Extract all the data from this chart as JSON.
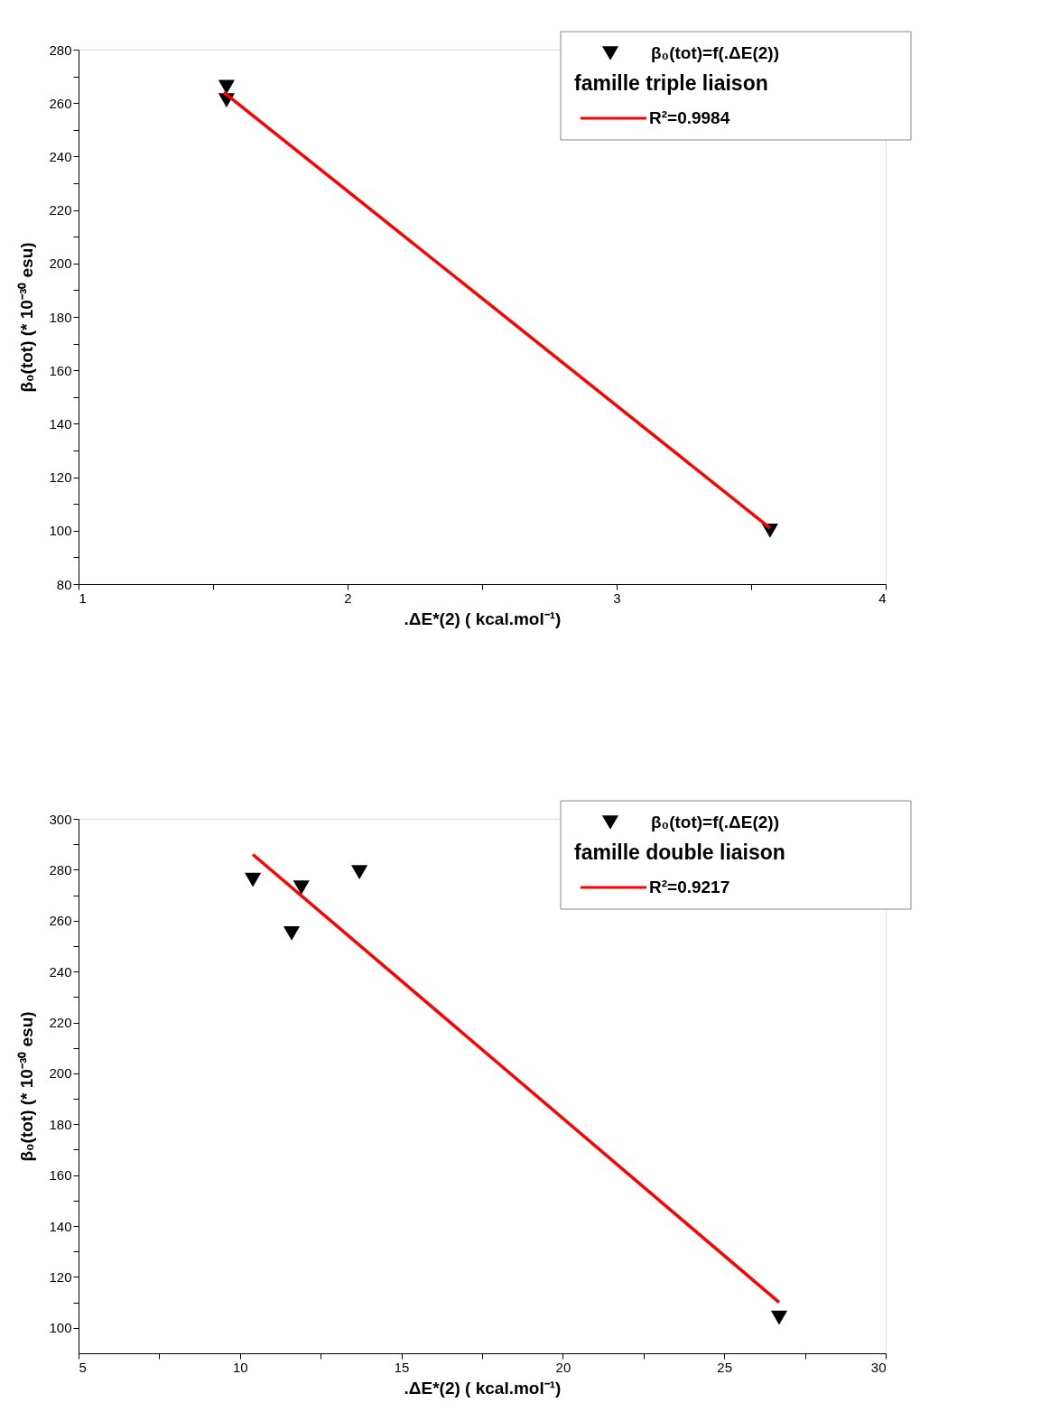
{
  "chart_data": [
    {
      "type": "scatter",
      "xlabel": ".ΔE*(2) ( kcal.mol⁻¹)",
      "ylabel": "β₀(tot) (* 10⁻³⁰ esu)",
      "legend_title": "famille triple liaison",
      "legend": "top right",
      "marker": "triangle",
      "grid": false,
      "xlim": [
        1,
        4
      ],
      "xticks": [
        1,
        {
          "value": 1.5,
          "label": null
        },
        2,
        {
          "value": 2.5,
          "label": null
        },
        3,
        {
          "value": 3.5,
          "label": null
        },
        4
      ],
      "ylim": [
        80,
        280
      ],
      "yticks": [
        80,
        {
          "value": 90,
          "label": null
        },
        100,
        {
          "value": 110,
          "label": null
        },
        120,
        {
          "value": 130,
          "label": null
        },
        140,
        {
          "value": 150,
          "label": null
        },
        160,
        {
          "value": 170,
          "label": null
        },
        180,
        {
          "value": 190,
          "label": null
        },
        200,
        {
          "value": 210,
          "label": null
        },
        220,
        {
          "value": 230,
          "label": null
        },
        240,
        {
          "value": 250,
          "label": null
        },
        260,
        {
          "value": 270,
          "label": null
        },
        280
      ],
      "series": [
        {
          "name": "β₀(tot)=f(.ΔE(2))",
          "color": "#000000",
          "x": [
            1.55,
            1.55,
            3.57
          ],
          "values": [
            266,
            261,
            100
          ]
        },
        {
          "type": "line",
          "name": "R²=0.9984",
          "color": "#ff0000",
          "marker": "none",
          "x": [
            1.54,
            3.57
          ],
          "values": [
            264,
            101
          ]
        }
      ]
    },
    {
      "type": "scatter",
      "xlabel": ".ΔE*(2) ( kcal.mol⁻¹)",
      "ylabel": "β₀(tot) (* 10⁻³⁰ esu)",
      "legend_title": "famille double liaison",
      "legend": "top right",
      "marker": "triangle",
      "grid": false,
      "xlim": [
        5,
        30
      ],
      "xticks": [
        5,
        {
          "value": 7.5,
          "label": null
        },
        10,
        {
          "value": 12.5,
          "label": null
        },
        15,
        {
          "value": 17.5,
          "label": null
        },
        20,
        {
          "value": 22.5,
          "label": null
        },
        25,
        {
          "value": 27.5,
          "label": null
        },
        30
      ],
      "ylim": [
        90,
        300
      ],
      "yticks": [
        100,
        {
          "value": 110,
          "label": null
        },
        120,
        {
          "value": 130,
          "label": null
        },
        140,
        {
          "value": 150,
          "label": null
        },
        160,
        {
          "value": 170,
          "label": null
        },
        180,
        {
          "value": 190,
          "label": null
        },
        200,
        {
          "value": 210,
          "label": null
        },
        220,
        {
          "value": 230,
          "label": null
        },
        240,
        {
          "value": 250,
          "label": null
        },
        260,
        {
          "value": 270,
          "label": null
        },
        280,
        {
          "value": 290,
          "label": null
        },
        300
      ],
      "series": [
        {
          "name": "β₀(tot)=f(.ΔE(2))",
          "color": "#000000",
          "x": [
            10.4,
            11.9,
            11.6,
            13.7,
            26.7
          ],
          "values": [
            276,
            273,
            255,
            279,
            104
          ]
        },
        {
          "type": "line",
          "name": "R²=0.9217",
          "color": "#ff0000",
          "marker": "none",
          "x": [
            10.4,
            26.7
          ],
          "values": [
            286,
            110
          ]
        }
      ]
    }
  ]
}
